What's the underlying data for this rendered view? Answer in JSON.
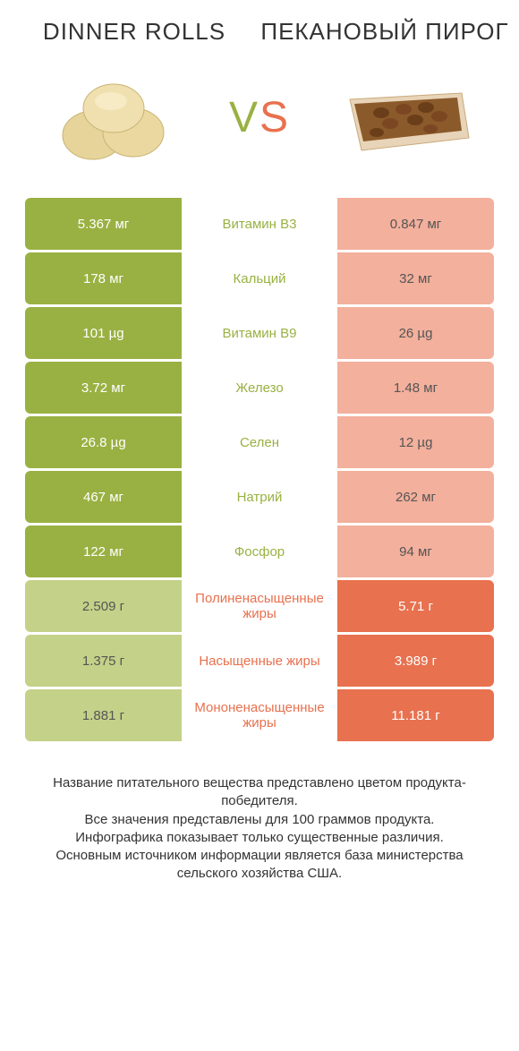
{
  "header": {
    "left": "DINNER ROLLS",
    "right": "ПЕКАНОВЫЙ ПИРОГ"
  },
  "vs": {
    "v": "V",
    "s": "S"
  },
  "colors": {
    "green": "#99b142",
    "green_loser": "#c4d188",
    "orange": "#e8714f",
    "orange_loser": "#f3b09c",
    "bg": "#ffffff",
    "text": "#333333"
  },
  "rows": [
    {
      "left": "5.367 мг",
      "label": "Витамин B3",
      "right": "0.847 мг",
      "winner": "left"
    },
    {
      "left": "178 мг",
      "label": "Кальций",
      "right": "32 мг",
      "winner": "left"
    },
    {
      "left": "101 µg",
      "label": "Витамин B9",
      "right": "26 µg",
      "winner": "left"
    },
    {
      "left": "3.72 мг",
      "label": "Железо",
      "right": "1.48 мг",
      "winner": "left"
    },
    {
      "left": "26.8 µg",
      "label": "Селен",
      "right": "12 µg",
      "winner": "left"
    },
    {
      "left": "467 мг",
      "label": "Натрий",
      "right": "262 мг",
      "winner": "left"
    },
    {
      "left": "122 мг",
      "label": "Фосфор",
      "right": "94 мг",
      "winner": "left"
    },
    {
      "left": "2.509 г",
      "label": "Полиненасыщенные жиры",
      "right": "5.71 г",
      "winner": "right"
    },
    {
      "left": "1.375 г",
      "label": "Насыщенные жиры",
      "right": "3.989 г",
      "winner": "right"
    },
    {
      "left": "1.881 г",
      "label": "Мононенасыщенные жиры",
      "right": "11.181 г",
      "winner": "right"
    }
  ],
  "footer": [
    "Название питательного вещества представлено цветом продукта-победителя.",
    "Все значения представлены для 100 граммов продукта.",
    "Инфографика показывает только существенные различия.",
    "Основным источником информации является база министерства сельского хозяйства США."
  ]
}
